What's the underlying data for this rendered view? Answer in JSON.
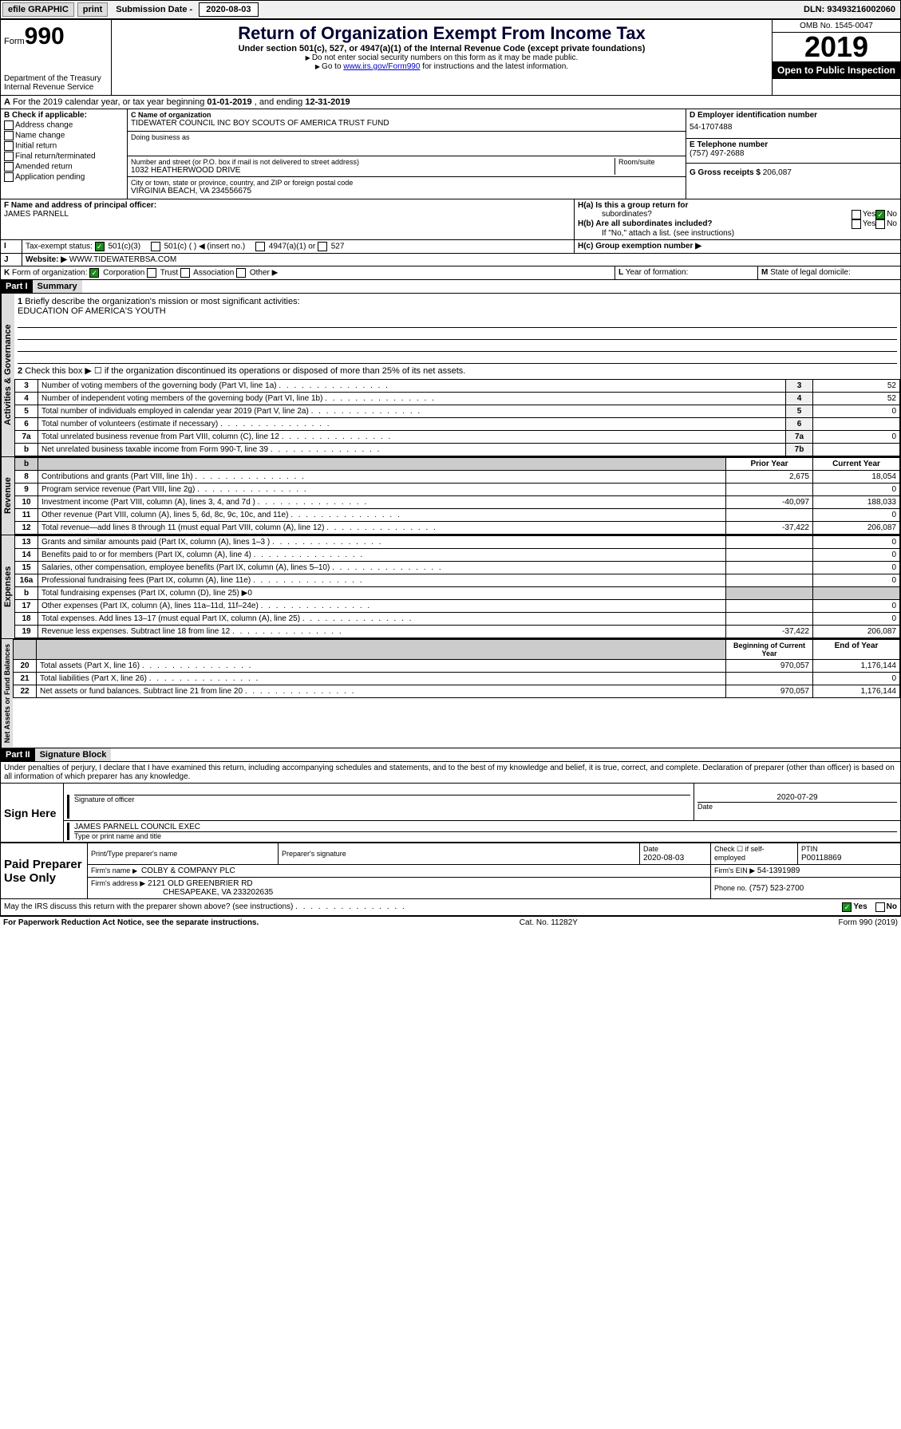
{
  "topbar": {
    "efile": "efile GRAPHIC",
    "print": "print",
    "sub_lbl": "Submission Date - ",
    "sub_date": "2020-08-03",
    "dln": "DLN: 93493216002060"
  },
  "hdr": {
    "form": "990",
    "formword": "Form",
    "dept": "Department of the Treasury",
    "irs": "Internal Revenue Service",
    "title": "Return of Organization Exempt From Income Tax",
    "sub": "Under section 501(c), 527, or 4947(a)(1) of the Internal Revenue Code (except private foundations)",
    "note1": "Do not enter social security numbers on this form as it may be made public.",
    "note2": "Go to ",
    "note2link": "www.irs.gov/Form990",
    "note2b": " for instructions and the latest information.",
    "omb": "OMB No. 1545-0047",
    "year": "2019",
    "open": "Open to Public Inspection"
  },
  "period": {
    "a": "A",
    "txt": "For the 2019 calendar year, or tax year beginning ",
    "d1": "01-01-2019",
    "mid": " , and ending ",
    "d2": "12-31-2019"
  },
  "b": {
    "lbl": "B Check if applicable:",
    "items": [
      "Address change",
      "Name change",
      "Initial return",
      "Final return/terminated",
      "Amended return",
      "Application pending"
    ]
  },
  "c": {
    "lbl": "C Name of organization",
    "name": "TIDEWATER COUNCIL INC BOY SCOUTS OF AMERICA TRUST FUND",
    "dba_lbl": "Doing business as",
    "addr_lbl": "Number and street (or P.O. box if mail is not delivered to street address)",
    "addr": "1032 HEATHERWOOD DRIVE",
    "room": "Room/suite",
    "city_lbl": "City or town, state or province, country, and ZIP or foreign postal code",
    "city": "VIRGINIA BEACH, VA  234556675"
  },
  "d": {
    "lbl": "D Employer identification number",
    "ein": "54-1707488"
  },
  "e": {
    "lbl": "E Telephone number",
    "tel": "(757) 497-2688"
  },
  "g": {
    "lbl": "G Gross receipts $",
    "val": "206,087"
  },
  "f": {
    "lbl": "F Name and address of principal officer:",
    "name": "JAMES PARNELL"
  },
  "h": {
    "a": "H(a)  Is this a group return for",
    "a2": "subordinates?",
    "b": "H(b)  Are all subordinates included?",
    "bnote": "If \"No,\" attach a list. (see instructions)",
    "c": "H(c)  Group exemption number ▶",
    "yes": "Yes",
    "no": "No"
  },
  "i": {
    "lbl": "I",
    "txt": "Tax-exempt status:",
    "o1": "501(c)(3)",
    "o2": "501(c) (  ) ◀ (insert no.)",
    "o3": "4947(a)(1) or",
    "o4": "527"
  },
  "j": {
    "lbl": "J",
    "txt": "Website: ▶",
    "url": "WWW.TIDEWATERBSA.COM"
  },
  "k": {
    "lbl": "K",
    "txt": "Form of organization:",
    "opts": [
      "Corporation",
      "Trust",
      "Association",
      "Other ▶"
    ]
  },
  "l": {
    "lbl": "L",
    "txt": "Year of formation:"
  },
  "m": {
    "lbl": "M",
    "txt": "State of legal domicile:"
  },
  "p1": {
    "hdr": "Part I",
    "title": "Summary",
    "l1": "Briefly describe the organization's mission or most significant activities:",
    "l1txt": "EDUCATION OF AMERICA'S YOUTH",
    "l2": "Check this box ▶ ☐  if the organization discontinued its operations or disposed of more than 25% of its net assets.",
    "rows": [
      {
        "n": "3",
        "t": "Number of voting members of the governing body (Part VI, line 1a)",
        "b": "3",
        "v": "52"
      },
      {
        "n": "4",
        "t": "Number of independent voting members of the governing body (Part VI, line 1b)",
        "b": "4",
        "v": "52"
      },
      {
        "n": "5",
        "t": "Total number of individuals employed in calendar year 2019 (Part V, line 2a)",
        "b": "5",
        "v": "0"
      },
      {
        "n": "6",
        "t": "Total number of volunteers (estimate if necessary)",
        "b": "6",
        "v": ""
      },
      {
        "n": "7a",
        "t": "Total unrelated business revenue from Part VIII, column (C), line 12",
        "b": "7a",
        "v": "0"
      },
      {
        "n": "b",
        "t": "Net unrelated business taxable income from Form 990-T, line 39",
        "b": "7b",
        "v": ""
      }
    ],
    "vert1": "Activities & Governance"
  },
  "rev": {
    "vert": "Revenue",
    "ph": "Prior Year",
    "cy": "Current Year",
    "rows": [
      {
        "n": "8",
        "t": "Contributions and grants (Part VIII, line 1h)",
        "p": "2,675",
        "c": "18,054"
      },
      {
        "n": "9",
        "t": "Program service revenue (Part VIII, line 2g)",
        "p": "",
        "c": "0"
      },
      {
        "n": "10",
        "t": "Investment income (Part VIII, column (A), lines 3, 4, and 7d )",
        "p": "-40,097",
        "c": "188,033"
      },
      {
        "n": "11",
        "t": "Other revenue (Part VIII, column (A), lines 5, 6d, 8c, 9c, 10c, and 11e)",
        "p": "",
        "c": "0"
      },
      {
        "n": "12",
        "t": "Total revenue—add lines 8 through 11 (must equal Part VIII, column (A), line 12)",
        "p": "-37,422",
        "c": "206,087"
      }
    ]
  },
  "exp": {
    "vert": "Expenses",
    "rows": [
      {
        "n": "13",
        "t": "Grants and similar amounts paid (Part IX, column (A), lines 1–3 )",
        "p": "",
        "c": "0"
      },
      {
        "n": "14",
        "t": "Benefits paid to or for members (Part IX, column (A), line 4)",
        "p": "",
        "c": "0"
      },
      {
        "n": "15",
        "t": "Salaries, other compensation, employee benefits (Part IX, column (A), lines 5–10)",
        "p": "",
        "c": "0"
      },
      {
        "n": "16a",
        "t": "Professional fundraising fees (Part IX, column (A), line 11e)",
        "p": "",
        "c": "0"
      },
      {
        "n": "b",
        "t": "Total fundraising expenses (Part IX, column (D), line 25) ▶0",
        "p": "gray",
        "c": "gray"
      },
      {
        "n": "17",
        "t": "Other expenses (Part IX, column (A), lines 11a–11d, 11f–24e)",
        "p": "",
        "c": "0"
      },
      {
        "n": "18",
        "t": "Total expenses. Add lines 13–17 (must equal Part IX, column (A), line 25)",
        "p": "",
        "c": "0"
      },
      {
        "n": "19",
        "t": "Revenue less expenses. Subtract line 18 from line 12",
        "p": "-37,422",
        "c": "206,087"
      }
    ]
  },
  "net": {
    "vert": "Net Assets or Fund Balances",
    "bh": "Beginning of Current Year",
    "eh": "End of Year",
    "rows": [
      {
        "n": "20",
        "t": "Total assets (Part X, line 16)",
        "p": "970,057",
        "c": "1,176,144"
      },
      {
        "n": "21",
        "t": "Total liabilities (Part X, line 26)",
        "p": "",
        "c": "0"
      },
      {
        "n": "22",
        "t": "Net assets or fund balances. Subtract line 21 from line 20",
        "p": "970,057",
        "c": "1,176,144"
      }
    ]
  },
  "p2": {
    "hdr": "Part II",
    "title": "Signature Block",
    "decl": "Under penalties of perjury, I declare that I have examined this return, including accompanying schedules and statements, and to the best of my knowledge and belief, it is true, correct, and complete. Declaration of preparer (other than officer) is based on all information of which preparer has any knowledge."
  },
  "sign": {
    "here": "Sign Here",
    "sig_lbl": "Signature of officer",
    "date_lbl": "Date",
    "date": "2020-07-29",
    "name": "JAMES PARNELL  COUNCIL EXEC",
    "name_lbl": "Type or print name and title"
  },
  "prep": {
    "lbl": "Paid Preparer Use Only",
    "pn_lbl": "Print/Type preparer's name",
    "ps_lbl": "Preparer's signature",
    "d_lbl": "Date",
    "d": "2020-08-03",
    "se_lbl": "Check ☐ if self-employed",
    "ptin_lbl": "PTIN",
    "ptin": "P00118869",
    "fn_lbl": "Firm's name",
    "fn": "COLBY & COMPANY PLC",
    "fein_lbl": "Firm's EIN ▶",
    "fein": "54-1391989",
    "fa_lbl": "Firm's address ▶",
    "fa": "2121 OLD GREENBRIER RD",
    "fa2": "CHESAPEAKE, VA  233202635",
    "ph_lbl": "Phone no.",
    "ph": "(757) 523-2700"
  },
  "discuss": {
    "txt": "May the IRS discuss this return with the preparer shown above? (see instructions)",
    "yes": "Yes",
    "no": "No"
  },
  "foot": {
    "l": "For Paperwork Reduction Act Notice, see the separate instructions.",
    "c": "Cat. No. 11282Y",
    "r": "Form 990 (2019)"
  }
}
